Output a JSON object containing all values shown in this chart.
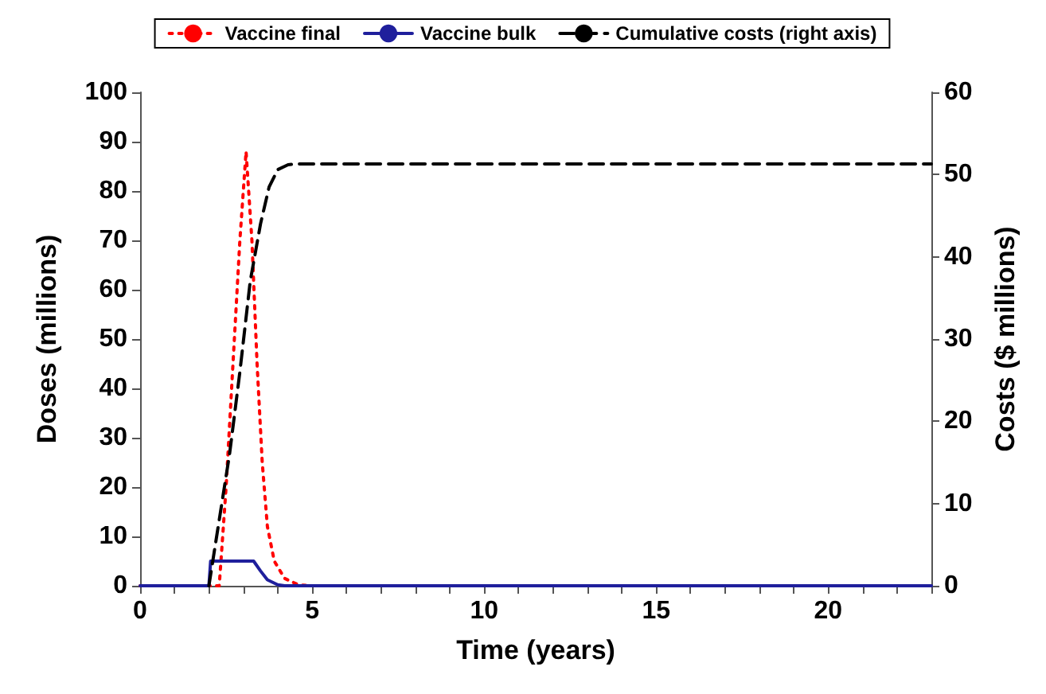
{
  "chart_data": {
    "type": "line",
    "xlabel": "Time (years)",
    "ylabel": "Doses (millions)",
    "y2label": "Costs ($ millions)",
    "xlim": [
      0,
      23
    ],
    "xticks": [
      0,
      5,
      10,
      15,
      20
    ],
    "ylim": [
      0,
      100
    ],
    "yticks": [
      0,
      10,
      20,
      30,
      40,
      50,
      60,
      70,
      80,
      90,
      100
    ],
    "y2lim": [
      0,
      60
    ],
    "y2ticks": [
      0,
      10,
      20,
      30,
      40,
      50,
      60
    ],
    "legend": "top",
    "grid": false,
    "marker": "none",
    "series": [
      {
        "name": "Vaccine final",
        "color": "#ff0000",
        "line_style": "dotted",
        "x": [
          0,
          2.3,
          2.5,
          2.7,
          2.9,
          3.08,
          3.25,
          3.4,
          3.55,
          3.7,
          3.9,
          4.2,
          4.6,
          5,
          23
        ],
        "values": [
          0,
          0,
          20,
          45,
          70,
          88,
          70,
          45,
          25,
          12,
          5,
          1.5,
          0.2,
          0,
          0
        ]
      },
      {
        "name": "Vaccine bulk",
        "color": "#1f1f9c",
        "line_style": "solid",
        "x": [
          0,
          2,
          2.05,
          3.3,
          3.5,
          3.7,
          4,
          4.2,
          23
        ],
        "values": [
          0,
          0,
          5,
          5,
          3,
          1.2,
          0.2,
          0,
          0
        ]
      },
      {
        "name": "Cumulative costs (right axis)",
        "color": "#000000",
        "line_style": "dashed",
        "axis": "y2",
        "x": [
          2,
          2.3,
          2.6,
          2.9,
          3.2,
          3.5,
          3.75,
          4,
          4.3,
          4.6,
          23
        ],
        "values": [
          0,
          8,
          16,
          26,
          37,
          44,
          48.5,
          50.6,
          51.2,
          51.3,
          51.3
        ]
      }
    ]
  }
}
